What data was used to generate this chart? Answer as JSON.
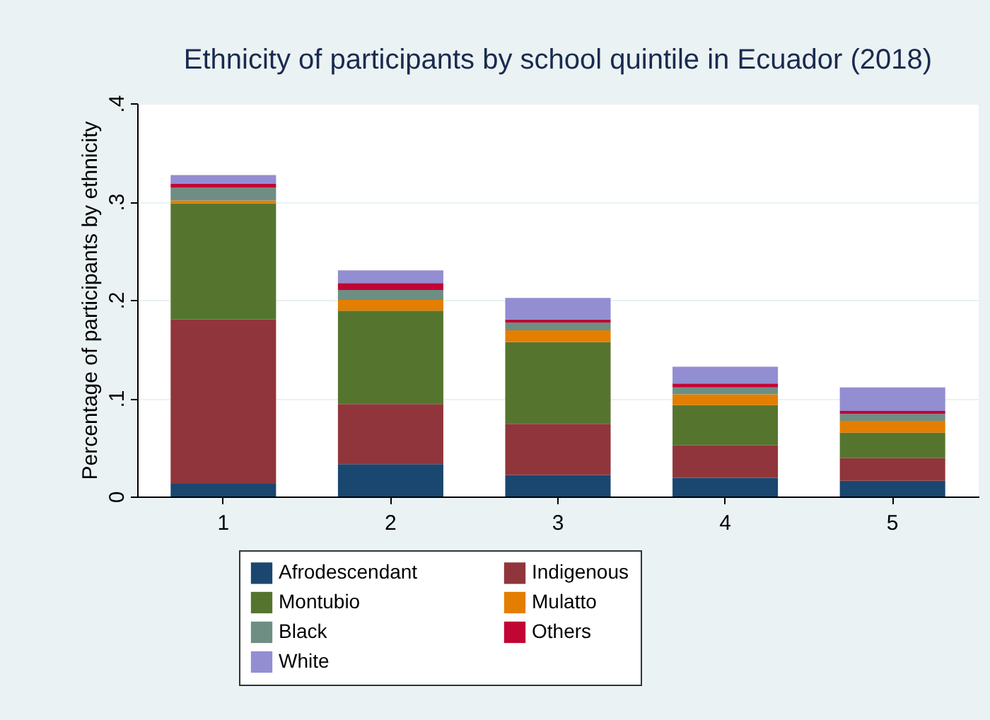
{
  "chart_data": {
    "type": "bar",
    "title": "Ethnicity of participants by school quintile in Ecuador (2018)",
    "ylabel": "Percentage of participants by ethnicity",
    "categories": [
      "1",
      "2",
      "3",
      "4",
      "5"
    ],
    "stacked": true,
    "series": [
      {
        "name": "Afrodescendant",
        "color": "#1a476f",
        "values": [
          0.013,
          0.033,
          0.022,
          0.019,
          0.016
        ]
      },
      {
        "name": "Indigenous",
        "color": "#90353b",
        "values": [
          0.167,
          0.061,
          0.052,
          0.033,
          0.023
        ]
      },
      {
        "name": "Montubio",
        "color": "#55752f",
        "values": [
          0.118,
          0.095,
          0.083,
          0.041,
          0.026
        ]
      },
      {
        "name": "Mulatto",
        "color": "#e37e00",
        "values": [
          0.003,
          0.011,
          0.012,
          0.011,
          0.012
        ]
      },
      {
        "name": "Black",
        "color": "#6e8e84",
        "values": [
          0.013,
          0.01,
          0.008,
          0.007,
          0.007
        ]
      },
      {
        "name": "Others",
        "color": "#c10534",
        "values": [
          0.004,
          0.007,
          0.003,
          0.004,
          0.003
        ]
      },
      {
        "name": "White",
        "color": "#938dd2",
        "values": [
          0.009,
          0.013,
          0.022,
          0.017,
          0.024
        ]
      }
    ],
    "ylim": [
      0,
      0.4
    ],
    "yticks": [
      {
        "value": 0,
        "label": "0"
      },
      {
        "value": 0.1,
        "label": ".1"
      },
      {
        "value": 0.2,
        "label": ".2"
      },
      {
        "value": 0.3,
        "label": ".3"
      },
      {
        "value": 0.4,
        "label": ".4"
      }
    ],
    "grid": "y",
    "legend": "bottom"
  }
}
